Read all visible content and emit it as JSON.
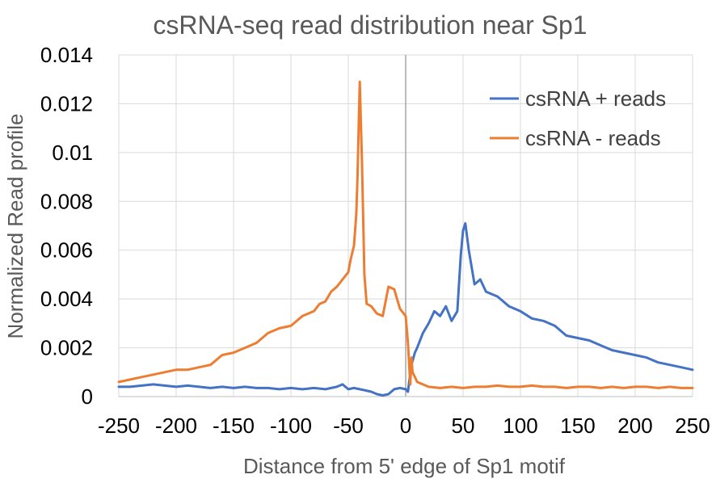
{
  "chart_data": {
    "type": "line",
    "title": "csRNA-seq read distribution near Sp1",
    "xlabel": "Distance from 5' edge of Sp1 motif",
    "ylabel": "Normalized Read profile",
    "xlim": [
      -250,
      250
    ],
    "ylim": [
      0,
      0.014
    ],
    "x_ticks": [
      "-250",
      "-200",
      "-150",
      "-100",
      "-50",
      "0",
      "50",
      "100",
      "150",
      "200",
      "250"
    ],
    "y_ticks": [
      "0",
      "0.002",
      "0.004",
      "0.006",
      "0.008",
      "0.01",
      "0.012",
      "0.014"
    ],
    "grid": true,
    "legend_position": "top-right",
    "series": [
      {
        "name": "csRNA + reads",
        "color": "#4472C4",
        "x": [
          -250,
          -240,
          -230,
          -220,
          -210,
          -200,
          -190,
          -180,
          -170,
          -160,
          -150,
          -140,
          -130,
          -120,
          -110,
          -100,
          -90,
          -80,
          -70,
          -60,
          -55,
          -50,
          -45,
          -40,
          -35,
          -30,
          -25,
          -20,
          -15,
          -10,
          -5,
          0,
          2,
          5,
          8,
          10,
          15,
          20,
          25,
          30,
          35,
          40,
          45,
          48,
          50,
          52,
          55,
          60,
          65,
          70,
          80,
          90,
          100,
          110,
          120,
          130,
          140,
          150,
          160,
          170,
          180,
          190,
          200,
          210,
          220,
          230,
          240,
          250
        ],
        "y": [
          0.0004,
          0.0004,
          0.00045,
          0.0005,
          0.00045,
          0.0004,
          0.00045,
          0.0004,
          0.00035,
          0.0004,
          0.00035,
          0.0004,
          0.00035,
          0.00035,
          0.0003,
          0.00035,
          0.0003,
          0.00035,
          0.0003,
          0.0004,
          0.0005,
          0.0003,
          0.00035,
          0.0003,
          0.00025,
          0.0002,
          0.0001,
          5e-05,
          0.0001,
          0.0003,
          0.00035,
          0.0003,
          0.0002,
          0.0013,
          0.0018,
          0.002,
          0.0026,
          0.003,
          0.0035,
          0.0033,
          0.0037,
          0.0031,
          0.0035,
          0.0058,
          0.0068,
          0.0071,
          0.006,
          0.0046,
          0.0048,
          0.0043,
          0.0041,
          0.0037,
          0.0035,
          0.0032,
          0.0031,
          0.0029,
          0.0025,
          0.0024,
          0.0023,
          0.0021,
          0.0019,
          0.0018,
          0.0017,
          0.0016,
          0.0014,
          0.0013,
          0.0012,
          0.0011
        ]
      },
      {
        "name": "csRNA - reads",
        "color": "#ED7D31",
        "x": [
          -250,
          -240,
          -230,
          -220,
          -210,
          -200,
          -190,
          -180,
          -170,
          -160,
          -150,
          -140,
          -130,
          -120,
          -110,
          -100,
          -90,
          -80,
          -75,
          -70,
          -65,
          -60,
          -55,
          -50,
          -48,
          -45,
          -43,
          -42,
          -41,
          -40,
          -38,
          -36,
          -34,
          -30,
          -25,
          -20,
          -15,
          -10,
          -5,
          0,
          2,
          4,
          5,
          6,
          8,
          10,
          15,
          20,
          30,
          40,
          50,
          60,
          70,
          80,
          90,
          100,
          110,
          120,
          130,
          140,
          150,
          160,
          170,
          180,
          190,
          200,
          210,
          220,
          230,
          240,
          250
        ],
        "y": [
          0.0006,
          0.0007,
          0.0008,
          0.0009,
          0.001,
          0.0011,
          0.0011,
          0.0012,
          0.0013,
          0.0017,
          0.0018,
          0.002,
          0.0022,
          0.0026,
          0.0028,
          0.0029,
          0.0033,
          0.0035,
          0.0038,
          0.0039,
          0.0043,
          0.0045,
          0.0048,
          0.0051,
          0.0056,
          0.0062,
          0.0075,
          0.009,
          0.011,
          0.0129,
          0.0095,
          0.005,
          0.0038,
          0.0037,
          0.0034,
          0.0033,
          0.0045,
          0.0044,
          0.0036,
          0.0033,
          0.0022,
          0.0005,
          0.0016,
          0.001,
          0.0008,
          0.0006,
          0.0005,
          0.0004,
          0.00035,
          0.0004,
          0.00035,
          0.0004,
          0.0004,
          0.00045,
          0.0004,
          0.0004,
          0.00045,
          0.0004,
          0.0004,
          0.00035,
          0.0004,
          0.0004,
          0.00035,
          0.0004,
          0.00035,
          0.0004,
          0.0004,
          0.00035,
          0.0004,
          0.00035,
          0.00035
        ]
      }
    ]
  }
}
